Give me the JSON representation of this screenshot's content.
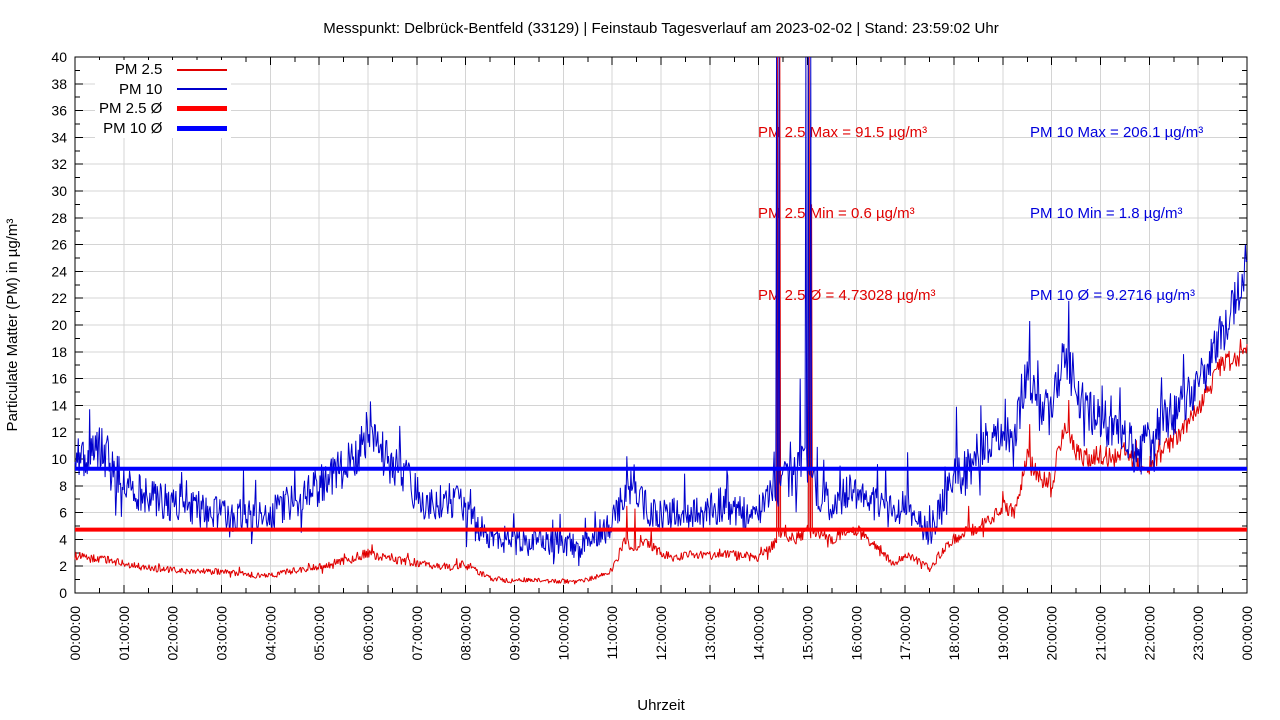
{
  "title": "Messpunkt: Delbrück-Bentfeld (33129) | Feinstaub Tagesverlauf am 2023-02-02 | Stand: 23:59:02 Uhr",
  "legend": {
    "items": [
      {
        "label": "PM 2.5",
        "color": "#e00000",
        "thickness": 2
      },
      {
        "label": "PM 10",
        "color": "#0000cc",
        "thickness": 2
      },
      {
        "label": "PM 2.5 Ø",
        "color": "#ff0000",
        "thickness": 5
      },
      {
        "label": "PM 10 Ø",
        "color": "#0000ff",
        "thickness": 5
      }
    ]
  },
  "stats": {
    "pm25": {
      "color": "#e00000",
      "lines": [
        "PM 2.5 Max = 91.5 µg/m³",
        "PM 2.5 Min = 0.6 µg/m³",
        "PM 2.5 Ø = 4.73028 µg/m³"
      ]
    },
    "pm10": {
      "color": "#0000dd",
      "lines": [
        "PM 10 Max = 206.1 µg/m³",
        "PM 10 Min = 1.8 µg/m³",
        "PM 10 Ø = 9.2716 µg/m³"
      ]
    }
  },
  "chart_data": {
    "type": "line",
    "title": "Messpunkt: Delbrück-Bentfeld (33129) | Feinstaub Tagesverlauf am 2023-02-02 | Stand: 23:59:02 Uhr",
    "xlabel": "Uhrzeit",
    "ylabel": "Particulate Matter (PM) in µg/m³",
    "x_axis": {
      "unit": "hours",
      "min": 0,
      "max": 24,
      "major_tick_hours": 1,
      "minor_tick_hours": 0.5,
      "tick_labels": [
        "00:00:00",
        "01:00:00",
        "02:00:00",
        "03:00:00",
        "04:00:00",
        "05:00:00",
        "06:00:00",
        "07:00:00",
        "08:00:00",
        "09:00:00",
        "10:00:00",
        "11:00:00",
        "12:00:00",
        "13:00:00",
        "14:00:00",
        "15:00:00",
        "16:00:00",
        "17:00:00",
        "18:00:00",
        "19:00:00",
        "20:00:00",
        "21:00:00",
        "22:00:00",
        "23:00:00",
        "00:00:00"
      ]
    },
    "y_axis": {
      "min": 0,
      "max": 40,
      "major_tick": 2,
      "minor_tick": 1
    },
    "grid": {
      "show": true,
      "color": "#d4d4d4"
    },
    "stats": {
      "pm25_max": 91.5,
      "pm25_min": 0.6,
      "pm25_avg": 4.73028,
      "pm10_max": 206.1,
      "pm10_min": 1.8,
      "pm10_avg": 9.2716,
      "unit": "µg/m³"
    },
    "averages": [
      {
        "name": "PM 2.5 Ø",
        "value": 4.73028,
        "color": "#ff0000",
        "width": 4
      },
      {
        "name": "PM 10 Ø",
        "value": 9.2716,
        "color": "#0000ff",
        "width": 4
      }
    ],
    "series": [
      {
        "name": "PM 2.5",
        "color": "#e00000",
        "width": 1,
        "sample_step_hours": 0.25,
        "floor": 0.6,
        "seed": 1234,
        "noise": {
          "base": 0.12,
          "factor": 0.08,
          "max": 0.8
        },
        "anchor_values": [
          2.8,
          2.6,
          2.5,
          2.4,
          2.2,
          2.0,
          1.9,
          1.8,
          1.7,
          1.6,
          1.7,
          1.6,
          1.6,
          1.5,
          1.4,
          1.3,
          1.4,
          1.5,
          1.7,
          1.8,
          2.0,
          2.2,
          2.4,
          2.7,
          3.0,
          2.7,
          2.5,
          2.4,
          2.2,
          2.1,
          2.0,
          1.9,
          2.2,
          1.6,
          1.1,
          1.0,
          0.9,
          1.0,
          0.9,
          0.85,
          0.9,
          0.75,
          1.0,
          1.3,
          1.7,
          3.8,
          3.4,
          3.7,
          3.0,
          2.6,
          2.8,
          2.9,
          2.8,
          3.0,
          2.9,
          2.7,
          2.6,
          3.4,
          4.4,
          4.0,
          4.6,
          4.4,
          4.0,
          4.5,
          4.7,
          4.0,
          3.0,
          2.2,
          2.8,
          2.4,
          1.8,
          3.0,
          4.0,
          4.5,
          5.0,
          5.5,
          6.4,
          6.0,
          10.0,
          8.6,
          8.2,
          12.2,
          10.6,
          10.0,
          10.4,
          10.0,
          10.8,
          9.6,
          9.5,
          10.5,
          11.5,
          12.5,
          13.8,
          15.5,
          17.2,
          17.4,
          18.0
        ],
        "spikes": [
          [
            6.0,
            3.3
          ],
          [
            11.3,
            6.5
          ],
          [
            11.47,
            6.3
          ],
          [
            11.8,
            4.8
          ],
          [
            14.38,
            91.5
          ],
          [
            14.43,
            60
          ],
          [
            15.03,
            91.5
          ],
          [
            15.08,
            29
          ],
          [
            18.3,
            6.5
          ],
          [
            19.0,
            7.6
          ],
          [
            19.55,
            12.6
          ],
          [
            20.35,
            14.4
          ],
          [
            23.97,
            18.3
          ]
        ]
      },
      {
        "name": "PM 10",
        "color": "#0000cc",
        "width": 1,
        "sample_step_hours": 0.25,
        "floor": 1.8,
        "seed": 5678,
        "noise": {
          "base": 0.55,
          "factor": 0.13,
          "max": 1.7
        },
        "anchor_values": [
          9.8,
          10.3,
          10.8,
          9.2,
          8.2,
          7.6,
          7.2,
          6.9,
          6.6,
          6.1,
          6.3,
          5.9,
          6.1,
          5.7,
          5.9,
          5.6,
          5.9,
          6.3,
          7.0,
          7.4,
          7.9,
          8.6,
          9.4,
          10.3,
          11.3,
          10.6,
          9.6,
          8.6,
          7.6,
          6.6,
          7.0,
          6.8,
          6.2,
          5.0,
          3.9,
          3.6,
          3.9,
          3.5,
          3.9,
          3.6,
          3.8,
          3.4,
          3.9,
          4.4,
          5.0,
          7.6,
          7.0,
          6.4,
          5.6,
          5.9,
          6.3,
          5.9,
          6.1,
          6.6,
          6.2,
          5.9,
          6.1,
          7.2,
          8.0,
          9.2,
          9.5,
          7.2,
          6.6,
          7.1,
          7.6,
          6.9,
          6.5,
          6.1,
          6.6,
          5.6,
          4.6,
          6.4,
          8.4,
          9.0,
          10.4,
          11.4,
          12.4,
          11.8,
          16.5,
          13.8,
          13.4,
          17.8,
          15.0,
          13.6,
          13.0,
          12.2,
          12.4,
          9.9,
          11.6,
          12.9,
          13.4,
          14.4,
          15.9,
          17.4,
          19.4,
          21.6,
          25.0
        ],
        "spikes": [
          [
            0.55,
            12.3
          ],
          [
            3.45,
            9.2
          ],
          [
            4.5,
            9.3
          ],
          [
            6.05,
            14.3
          ],
          [
            11.3,
            10.2
          ],
          [
            11.45,
            9.6
          ],
          [
            14.37,
            206.1
          ],
          [
            14.42,
            100
          ],
          [
            14.65,
            11.3
          ],
          [
            14.85,
            16.0
          ],
          [
            14.97,
            120
          ],
          [
            15.02,
            206.1
          ],
          [
            15.07,
            150
          ],
          [
            15.2,
            10.9
          ],
          [
            16.6,
            9.4
          ],
          [
            17.05,
            10.5
          ],
          [
            18.05,
            13.9
          ],
          [
            18.55,
            14.0
          ],
          [
            19.05,
            14.5
          ],
          [
            19.55,
            20.3
          ],
          [
            20.35,
            21.8
          ],
          [
            23.97,
            26.0
          ]
        ]
      }
    ]
  }
}
